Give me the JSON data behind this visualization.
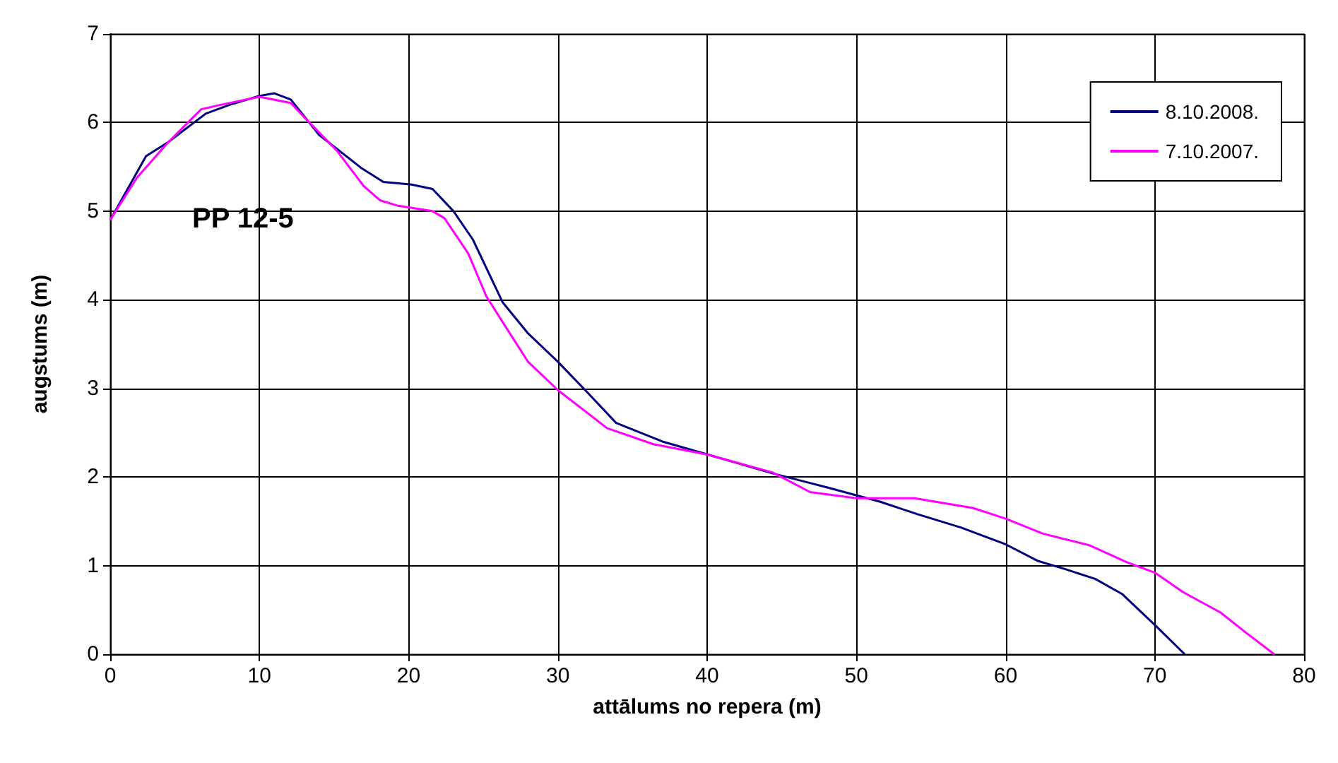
{
  "chart_data": {
    "type": "line",
    "xlabel": "attālums no repera (m)",
    "ylabel": "augstums (m)",
    "annotations": [
      "PP 12-5"
    ],
    "xlim": [
      0,
      80
    ],
    "xticks": [
      0,
      10,
      20,
      30,
      40,
      50,
      60,
      70,
      80
    ],
    "ylim": [
      0,
      7
    ],
    "yticks": [
      0,
      1,
      2,
      3,
      4,
      5,
      6,
      7
    ],
    "grid": true,
    "legend": "top right",
    "marker": "none",
    "line_style": "solid",
    "series": [
      {
        "name": "8.10.2008.",
        "color": "#000080",
        "x": [
          0,
          2.4,
          3.9,
          6.4,
          8,
          10,
          11,
          12.1,
          14,
          16.8,
          18.3,
          20.2,
          21.6,
          23,
          24.3,
          26.3,
          28,
          30,
          32,
          33.9,
          37,
          40.1,
          44.4,
          46.7,
          48.1,
          51.6,
          54.1,
          57,
          60,
          62.2,
          64,
          66,
          67.8,
          70,
          72
        ],
        "values": [
          4.9,
          5.62,
          5.78,
          6.1,
          6.2,
          6.3,
          6.33,
          6.26,
          5.86,
          5.49,
          5.33,
          5.3,
          5.25,
          5,
          4.68,
          3.97,
          3.62,
          3.3,
          2.95,
          2.61,
          2.4,
          2.25,
          2.04,
          1.94,
          1.88,
          1.72,
          1.58,
          1.43,
          1.24,
          1.05,
          0.96,
          0.85,
          0.68,
          0.33,
          0
        ]
      },
      {
        "name": "7.10.2007.",
        "color": "#ff00ff",
        "x": [
          0,
          1.8,
          3.9,
          6.1,
          7.4,
          10,
          12.1,
          13,
          15.2,
          17,
          18.1,
          19.3,
          21.6,
          22.4,
          24,
          25.2,
          26.4,
          28,
          30,
          33.3,
          36.4,
          40.1,
          44.4,
          46.9,
          50,
          53.9,
          57.8,
          60,
          62.5,
          65.6,
          68.1,
          70,
          71.9,
          74.4,
          76.2,
          78
        ],
        "values": [
          4.9,
          5.38,
          5.78,
          6.15,
          6.2,
          6.29,
          6.22,
          6.06,
          5.68,
          5.28,
          5.12,
          5.06,
          5,
          4.92,
          4.52,
          4.04,
          3.72,
          3.3,
          2.98,
          2.55,
          2.37,
          2.25,
          2.05,
          1.83,
          1.76,
          1.76,
          1.65,
          1.53,
          1.36,
          1.23,
          1.04,
          0.92,
          0.7,
          0.47,
          0.23,
          0
        ]
      }
    ]
  }
}
